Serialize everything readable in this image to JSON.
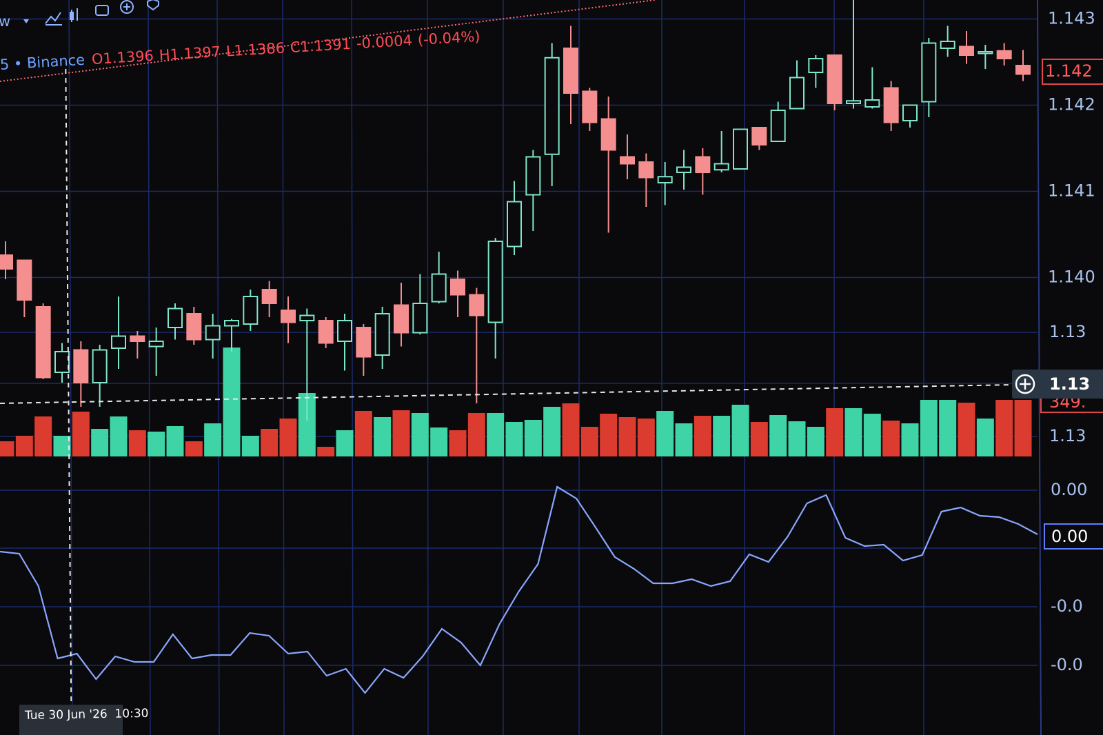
{
  "toolbar": {
    "label": "w"
  },
  "legend": {
    "symbol": "5 • Binance",
    "ohlc": [
      {
        "key": "O",
        "value": 1.1396
      },
      {
        "key": "H",
        "value": 1.1397
      },
      {
        "key": "L",
        "value": 1.1386
      },
      {
        "key": "C",
        "value": 1.1391
      }
    ],
    "change": -0.0004,
    "change_pct": "(-0.04%)"
  },
  "chart_data": {
    "type": "candlestick",
    "open": [
      1.14026,
      1.1402,
      1.13966,
      1.1389,
      1.13916,
      1.13878,
      1.13918,
      1.13932,
      1.1392,
      1.13942,
      1.13958,
      1.13928,
      1.13944,
      1.13946,
      1.13986,
      1.13962,
      1.1395,
      1.1395,
      1.13926,
      1.13942,
      1.1391,
      1.13968,
      1.13936,
      1.13972,
      1.13998,
      1.1398,
      1.13948,
      1.14036,
      1.14096,
      1.14143,
      1.14266,
      1.14216,
      1.14184,
      1.1414,
      1.14134,
      1.1411,
      1.14122,
      1.1414,
      1.14125,
      1.14126,
      1.14174,
      1.14158,
      1.14196,
      1.14238,
      1.14258,
      1.14202,
      1.14198,
      1.1422,
      1.14182,
      1.14204,
      1.14266,
      1.14268,
      1.1426,
      1.14263,
      1.14246
    ],
    "high": [
      1.14042,
      1.1402,
      1.1397,
      1.13924,
      1.13926,
      1.13922,
      1.13978,
      1.13938,
      1.13942,
      1.1397,
      1.13966,
      1.13958,
      1.13952,
      1.13986,
      1.13996,
      1.13978,
      1.13964,
      1.13954,
      1.13958,
      1.13946,
      1.13966,
      1.13994,
      1.14004,
      1.1403,
      1.14008,
      1.13988,
      1.14046,
      1.14112,
      1.14148,
      1.14272,
      1.14292,
      1.1422,
      1.1421,
      1.14166,
      1.14144,
      1.14134,
      1.14148,
      1.1415,
      1.1417,
      1.14172,
      1.14174,
      1.14204,
      1.14252,
      1.14258,
      1.14258,
      1.14322,
      1.14244,
      1.14228,
      1.142,
      1.14278,
      1.14292,
      1.14286,
      1.1427,
      1.14272,
      1.14264
    ],
    "low": [
      1.13998,
      1.13954,
      1.13882,
      1.13878,
      1.1385,
      1.1385,
      1.13894,
      1.13906,
      1.13886,
      1.13928,
      1.13922,
      1.13906,
      1.13914,
      1.13938,
      1.13954,
      1.13924,
      1.13834,
      1.13918,
      1.13892,
      1.13886,
      1.13894,
      1.1392,
      1.13934,
      1.1397,
      1.13954,
      1.13854,
      1.13906,
      1.14026,
      1.14054,
      1.14106,
      1.14178,
      1.1417,
      1.14052,
      1.14114,
      1.14082,
      1.14084,
      1.14102,
      1.14096,
      1.14122,
      1.14126,
      1.14148,
      1.14158,
      1.14196,
      1.1422,
      1.14194,
      1.14196,
      1.14196,
      1.1417,
      1.14174,
      1.14186,
      1.14256,
      1.14248,
      1.14242,
      1.14246,
      1.14228
    ],
    "close": [
      1.1401,
      1.13974,
      1.13884,
      1.13914,
      1.13878,
      1.13916,
      1.13932,
      1.13926,
      1.13926,
      1.13964,
      1.13928,
      1.13944,
      1.1395,
      1.13978,
      1.1397,
      1.13948,
      1.13956,
      1.13924,
      1.1395,
      1.13908,
      1.13958,
      1.13936,
      1.1397,
      1.14004,
      1.1398,
      1.13956,
      1.14042,
      1.14088,
      1.1414,
      1.14255,
      1.14214,
      1.1418,
      1.14148,
      1.14132,
      1.14116,
      1.14117,
      1.14128,
      1.14122,
      1.14132,
      1.14172,
      1.14154,
      1.14194,
      1.14232,
      1.14254,
      1.14202,
      1.14205,
      1.14206,
      1.1418,
      1.142,
      1.14272,
      1.14274,
      1.14258,
      1.14262,
      1.14254,
      1.14236
    ],
    "volume": [
      22,
      30,
      58,
      30,
      65,
      40,
      58,
      38,
      36,
      44,
      22,
      48,
      158,
      30,
      40,
      55,
      92,
      14,
      38,
      66,
      57,
      67,
      63,
      42,
      38,
      63,
      63,
      50,
      53,
      72,
      77,
      43,
      62,
      57,
      55,
      66,
      48,
      59,
      59,
      75,
      50,
      60,
      51,
      43,
      70,
      70,
      62,
      52,
      48,
      82,
      82,
      78,
      55,
      82,
      82
    ],
    "ylim": [
      1.13484,
      1.14322
    ],
    "yticks": [
      1.143,
      1.142,
      1.141,
      {
        "value": 1.14,
        "label": "1.140"
      }
    ],
    "grid": true,
    "up_color": "#7fe6c9",
    "down_color": "#f58e8e",
    "volume_up_color": "#3fd4a6",
    "volume_down_color": "#dc3b2f"
  },
  "oscillator": {
    "type": "line",
    "values": [
      -0.00023,
      -0.00026,
      -0.00073,
      -0.00178,
      -0.00171,
      -0.00208,
      -0.00175,
      -0.00183,
      -0.00183,
      -0.00143,
      -0.00178,
      -0.00173,
      -0.00173,
      -0.00141,
      -0.00145,
      -0.00171,
      -0.00168,
      -0.00203,
      -0.00193,
      -0.00228,
      -0.00193,
      -0.00206,
      -0.00175,
      -0.00135,
      -0.00155,
      -0.00188,
      -0.00128,
      -0.00081,
      -0.00041,
      0.00071,
      0.00054,
      0.00012,
      -0.00031,
      -0.00048,
      -0.00069,
      -0.00069,
      -0.00063,
      -0.00073,
      -0.00066,
      -0.00027,
      -0.00038,
      -1e-05,
      0.00047,
      0.00059,
      -3e-05,
      -0.00015,
      -0.00013,
      -0.00036,
      -0.00028,
      0.00035,
      0.00041,
      0.00029,
      0.00027,
      0.00017,
      2e-05
    ],
    "color": "#8aa6ff",
    "ylim": [
      -0.00289,
      0.00087
    ],
    "yticks": [
      {
        "value": 0.00066,
        "label": "0.00"
      },
      {
        "value": -0.00103,
        "label": "-0.0"
      },
      {
        "value": -0.00188,
        "label": "-0.0"
      }
    ]
  },
  "price_axis": {
    "fragments": [
      "1.13",
      "1.13"
    ],
    "last_price": "1.142",
    "crosshair_price": "1.13",
    "volume_label": "349."
  },
  "oscillator_axis": {
    "last_value": "0.00"
  },
  "time_axis": {
    "crosshair_time": "Tue 30 Jun '26  10:30"
  }
}
